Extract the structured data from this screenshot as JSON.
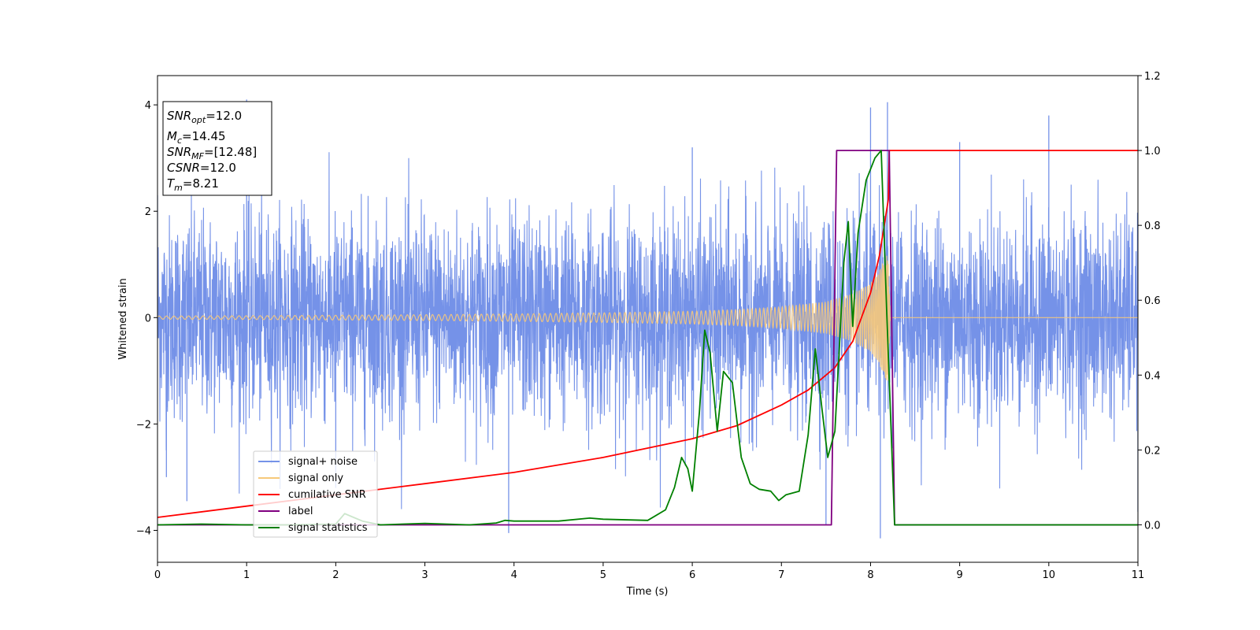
{
  "chart_data": {
    "type": "line",
    "xlabel": "Time (s)",
    "ylabel_left": "Whitened strain",
    "ylabel_right": "",
    "xlim": [
      0,
      11
    ],
    "ylim_left": [
      -4.6,
      4.55
    ],
    "ylim_right": [
      -0.1,
      1.2
    ],
    "xticks": [
      "0",
      "1",
      "2",
      "3",
      "4",
      "5",
      "6",
      "7",
      "8",
      "9",
      "10",
      "11"
    ],
    "yticks_left": [
      "−4",
      "−2",
      "0",
      "2",
      "4"
    ],
    "yticks_right": [
      "0.0",
      "0.2",
      "0.4",
      "0.6",
      "0.8",
      "1.0",
      "1.2"
    ],
    "legend_location": "lower-left",
    "annotation": {
      "snr_opt": "=12.0",
      "mc": "=14.45",
      "snr_mf": "=[12.48]",
      "csnr": "=12.0",
      "tm": "=8.21"
    },
    "series": [
      {
        "name": "signal+ noise",
        "color": "#7592e8",
        "axis": "left",
        "description_points": {
          "x": [
            0,
            0.1,
            0.33,
            1.0,
            2.0,
            3.94,
            6.0,
            7.5,
            8.0,
            8.11,
            8.19,
            9.0,
            10.0,
            11.0
          ],
          "y": [
            2.3,
            -3.0,
            -3.45,
            4.1,
            -3.2,
            -4.05,
            3.2,
            -3.9,
            3.95,
            -4.15,
            4.05,
            3.3,
            3.8,
            -3.65
          ]
        }
      },
      {
        "name": "signal only",
        "color": "#f7c97a",
        "axis": "left",
        "amplitude_envelope": {
          "x": [
            0,
            1,
            2,
            3,
            4,
            5,
            6,
            6.5,
            7,
            7.5,
            7.8,
            8.0,
            8.1,
            8.18,
            8.21,
            8.22,
            11
          ],
          "y": [
            0.03,
            0.035,
            0.045,
            0.055,
            0.07,
            0.09,
            0.12,
            0.15,
            0.2,
            0.3,
            0.45,
            0.65,
            0.9,
            1.2,
            1.2,
            0.0,
            0.0
          ]
        }
      },
      {
        "name": "cumilative SNR",
        "color": "#ff0000",
        "axis": "right",
        "x": [
          0,
          1,
          2,
          3,
          4,
          5,
          6,
          6.5,
          7,
          7.3,
          7.6,
          7.8,
          8.0,
          8.1,
          8.2,
          8.21,
          11
        ],
        "y": [
          0.02,
          0.05,
          0.08,
          0.11,
          0.14,
          0.18,
          0.23,
          0.265,
          0.32,
          0.36,
          0.42,
          0.49,
          0.62,
          0.72,
          0.87,
          1.0,
          1.0
        ]
      },
      {
        "name": "label",
        "color": "#800080",
        "axis": "right",
        "x": [
          0,
          7.56,
          7.62,
          8.21,
          8.27,
          11
        ],
        "y": [
          0,
          0,
          1,
          1,
          0,
          0
        ]
      },
      {
        "name": "signal statistics",
        "color": "#008000",
        "axis": "right",
        "x": [
          0,
          0.5,
          1,
          1.5,
          2.0,
          2.1,
          2.2,
          2.3,
          2.5,
          3.0,
          3.5,
          3.8,
          3.9,
          4.0,
          4.5,
          4.85,
          5.0,
          5.5,
          5.7,
          5.8,
          5.88,
          5.95,
          6.0,
          6.08,
          6.14,
          6.2,
          6.28,
          6.35,
          6.45,
          6.55,
          6.65,
          6.75,
          6.88,
          6.97,
          7.05,
          7.2,
          7.3,
          7.38,
          7.45,
          7.52,
          7.6,
          7.7,
          7.75,
          7.8,
          7.86,
          7.95,
          8.05,
          8.12,
          8.18,
          8.27,
          11
        ],
        "y": [
          0,
          0.002,
          0.0,
          0.0,
          0.002,
          0.03,
          0.02,
          0.01,
          0.0,
          0.004,
          0.0,
          0.005,
          0.012,
          0.01,
          0.01,
          0.018,
          0.015,
          0.012,
          0.04,
          0.1,
          0.18,
          0.15,
          0.09,
          0.3,
          0.52,
          0.46,
          0.25,
          0.41,
          0.38,
          0.18,
          0.11,
          0.095,
          0.09,
          0.065,
          0.08,
          0.09,
          0.24,
          0.47,
          0.32,
          0.18,
          0.25,
          0.7,
          0.81,
          0.53,
          0.78,
          0.92,
          0.98,
          1.0,
          0.58,
          0.0,
          0.0
        ]
      }
    ]
  }
}
